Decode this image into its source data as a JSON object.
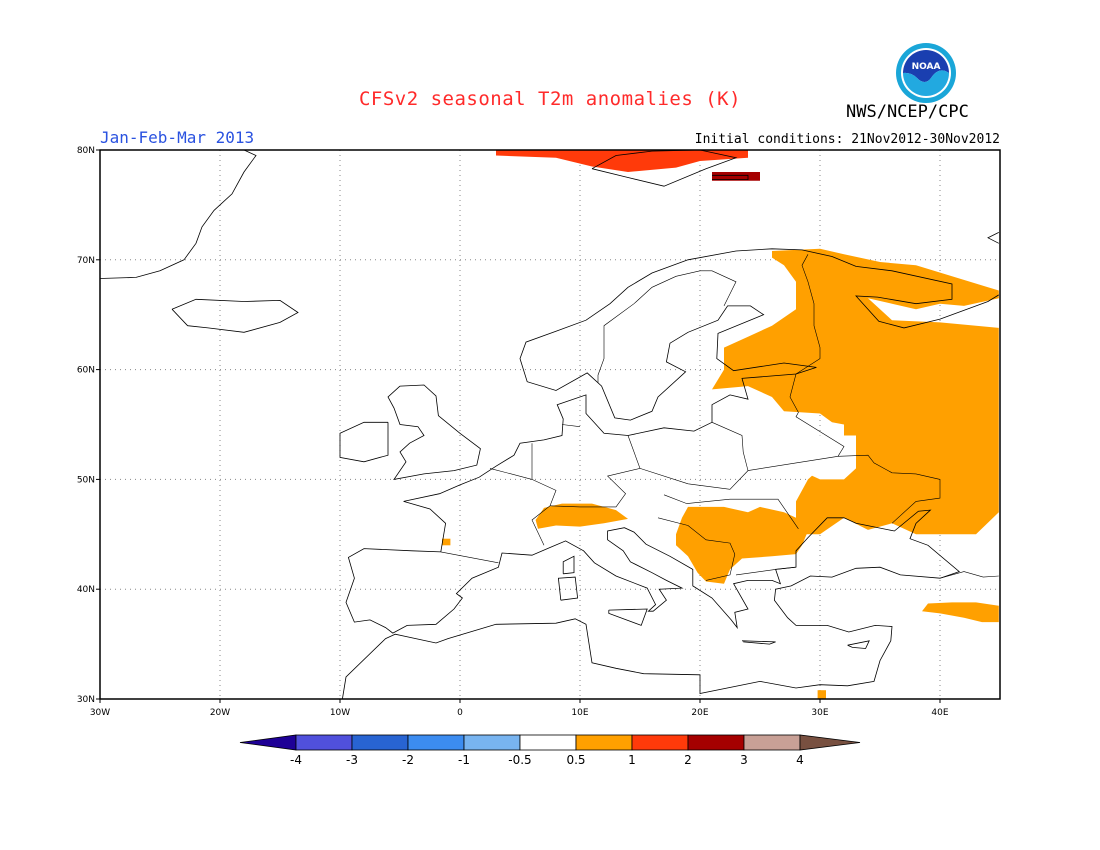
{
  "header": {
    "title": "CFSv2 seasonal T2m anomalies (K)",
    "agency": "NWS/NCEP/CPC",
    "logo_text": "NOAA",
    "period": "Jan-Feb-Mar 2013",
    "initial_conditions": "Initial conditions: 21Nov2012-30Nov2012"
  },
  "map": {
    "lon_range": [
      -30,
      45
    ],
    "lat_range": [
      30,
      80
    ],
    "x_ticks": [
      "30W",
      "20W",
      "10W",
      "0",
      "10E",
      "20E",
      "30E",
      "40E"
    ],
    "y_ticks": [
      "30N",
      "40N",
      "50N",
      "60N",
      "70N",
      "80N"
    ],
    "grid": true,
    "anomaly_regions": [
      {
        "label": "Svalbard",
        "category": "1-2",
        "color": "#ff3a0a"
      },
      {
        "label": "Svalbard east",
        "category": "2-3",
        "color": "#a50000"
      },
      {
        "label": "Fennoscandia-Russia",
        "category": "0.5-1",
        "color": "#ffa000"
      },
      {
        "label": "Alps",
        "category": "0.5-1",
        "color": "#ffa000"
      },
      {
        "label": "Balkans-Danube",
        "category": "0.5-1",
        "color": "#ffa000"
      },
      {
        "label": "Turkey east",
        "category": "0.5-1",
        "color": "#ffa000"
      }
    ]
  },
  "colorbar": {
    "colors": [
      "#1e0096",
      "#5050dc",
      "#2864d2",
      "#3c8cf0",
      "#78b4f0",
      "#ffffff",
      "#ffa000",
      "#ff3a0a",
      "#a50000",
      "#c8a096",
      "#785040"
    ],
    "labels": [
      "-4",
      "-3",
      "-2",
      "-1",
      "-0.5",
      "0.5",
      "1",
      "2",
      "3",
      "4"
    ]
  }
}
